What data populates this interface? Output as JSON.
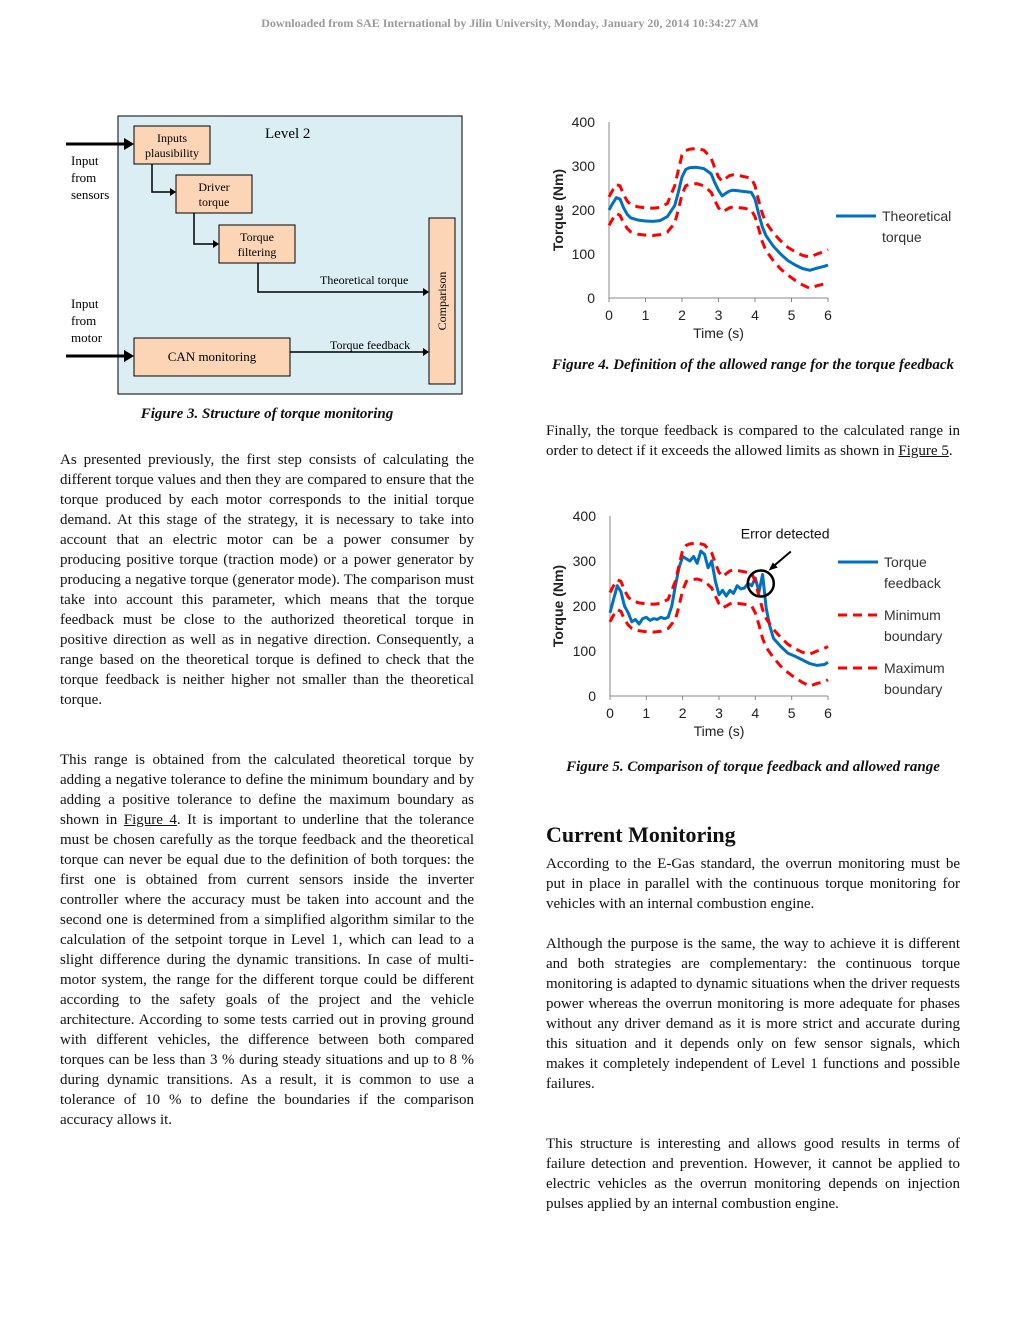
{
  "header": "Downloaded from SAE International by Jilin University, Monday, January 20, 2014 10:34:27 AM",
  "figure3": {
    "title": "Level 2",
    "input_sensors": [
      "Input",
      "from",
      "sensors"
    ],
    "input_motor": [
      "Input",
      "from",
      "motor"
    ],
    "block_inputs": [
      "Inputs",
      "plausibility"
    ],
    "block_driver": [
      "Driver",
      "torque"
    ],
    "block_filter": [
      "Torque",
      "filtering"
    ],
    "block_can": "CAN monitoring",
    "block_comparison": "Comparison",
    "label_theoretical": "Theoretical torque",
    "label_feedback": "Torque feedback",
    "colors": {
      "background": "#dbeef3",
      "block": "#fbd5b5"
    },
    "caption": "Figure 3. Structure of torque monitoring"
  },
  "left_paragraphs": [
    "As presented previously, the first step consists of calculating the different torque values and then they are compared to ensure that the torque produced by each motor corresponds to the initial torque demand. At this stage of the strategy, it is necessary to take into account that an electric motor can be a power consumer by producing positive torque (traction mode) or a power generator by producing a negative torque (generator mode). The comparison must take into account this parameter, which means that the torque feedback must be close to the authorized theoretical torque in positive direction as well as in negative direction. Consequently, a range based on the theoretical torque is defined to check that the torque feedback is neither higher not smaller than the theoretical torque."
  ],
  "para2": {
    "before": "This range is obtained from the calculated theoretical torque by adding a negative tolerance to define the minimum boundary and by adding a positive tolerance to define the maximum boundary as shown in ",
    "link": "Figure 4",
    "after": ". It is important to underline that the tolerance must be chosen carefully as the torque feedback and the theoretical torque can never be equal due to the definition of both torques: the first one is obtained from current sensors inside the inverter controller where the accuracy must be taken into account and the second one is determined from a simplified algorithm similar to the calculation of the setpoint torque in Level 1, which can lead to a slight difference during the dynamic transitions. In case of multi-motor system, the range for the different torque could be different according to the safety goals of the project and the vehicle architecture. According to some tests carried out in proving ground with different vehicles, the difference between both compared torques can be less than 3 % during steady situations and up to 8 % during dynamic transitions. As a result, it is common to use a tolerance of 10 % to define the boundaries if the comparison accuracy allows it."
  },
  "figure4_caption": "Figure 4. Definition of the allowed range for the torque feedback",
  "para_right1": {
    "before": "Finally, the torque feedback is compared to the calculated range in order to detect if it exceeds the allowed limits as shown in ",
    "link": "Figure 5",
    "after": "."
  },
  "figure5_annotation": "Error detected",
  "figure5_caption": "Figure 5. Comparison of torque feedback and allowed range",
  "section_heading": "Current Monitoring",
  "right_paragraphs": [
    "According to the E-Gas standard, the overrun monitoring must be put in place in parallel with the continuous torque monitoring for vehicles with an internal combustion engine.",
    "Although the purpose is the same, the way to achieve it is different and both strategies are complementary: the continuous torque monitoring is adapted to dynamic situations when the driver requests power whereas the overrun monitoring is more adequate for phases without any driver demand as it is more strict and accurate during this situation and it depends only on few sensor signals, which makes it completely independent of Level 1 functions and possible failures.",
    "This structure is interesting and allows good results in terms of failure detection and prevention. However, it cannot be applied to electric vehicles as the overrun monitoring depends on injection pulses applied by an internal combustion engine."
  ],
  "chart_data": [
    {
      "type": "line",
      "xlabel": "Time (s)",
      "ylabel": "Torque (Nm)",
      "xlim": [
        0,
        6
      ],
      "ylim": [
        0,
        400
      ],
      "xticks": [
        "0",
        "1",
        "2",
        "3",
        "4",
        "5",
        "6"
      ],
      "yticks": [
        "0",
        "100",
        "200",
        "300",
        "400"
      ],
      "legend_position": "right",
      "series": [
        {
          "name": "Theoretical torque",
          "color": "#0070c0",
          "style": "solid",
          "x": [
            0,
            0.1,
            0.2,
            0.3,
            0.4,
            0.5,
            0.6,
            0.8,
            1.0,
            1.2,
            1.4,
            1.6,
            1.8,
            1.9,
            2.0,
            2.1,
            2.2,
            2.4,
            2.6,
            2.8,
            2.9,
            3.0,
            3.1,
            3.2,
            3.3,
            3.4,
            3.5,
            3.7,
            3.9,
            4.0,
            4.1,
            4.2,
            4.3,
            4.5,
            4.7,
            4.9,
            5.1,
            5.3,
            5.5,
            5.7,
            5.9,
            6.0
          ],
          "y": [
            200,
            215,
            228,
            225,
            205,
            190,
            182,
            177,
            175,
            174,
            176,
            185,
            210,
            240,
            275,
            292,
            296,
            297,
            294,
            282,
            262,
            245,
            232,
            238,
            243,
            245,
            244,
            242,
            240,
            225,
            192,
            162,
            142,
            118,
            100,
            85,
            75,
            67,
            63,
            68,
            72,
            75
          ]
        },
        {
          "name": "",
          "color": "#ff0000",
          "style": "dashed",
          "x": [
            0,
            0.1,
            0.2,
            0.3,
            0.4,
            0.5,
            0.6,
            0.8,
            1.0,
            1.2,
            1.4,
            1.6,
            1.8,
            1.9,
            2.0,
            2.1,
            2.2,
            2.4,
            2.6,
            2.8,
            2.9,
            3.0,
            3.1,
            3.2,
            3.3,
            3.4,
            3.5,
            3.7,
            3.9,
            4.0,
            4.1,
            4.2,
            4.3,
            4.5,
            4.7,
            4.9,
            5.1,
            5.3,
            5.5,
            5.7,
            5.9,
            6.0
          ],
          "y": [
            230,
            245,
            258,
            255,
            235,
            220,
            212,
            207,
            205,
            204,
            206,
            215,
            255,
            290,
            325,
            335,
            338,
            340,
            336,
            318,
            295,
            275,
            265,
            272,
            278,
            280,
            279,
            276,
            272,
            255,
            222,
            192,
            172,
            148,
            130,
            115,
            105,
            97,
            93,
            100,
            106,
            110
          ]
        },
        {
          "name": "",
          "color": "#ff0000",
          "style": "dashed",
          "x": [
            0,
            0.1,
            0.2,
            0.3,
            0.4,
            0.5,
            0.6,
            0.8,
            1.0,
            1.2,
            1.4,
            1.6,
            1.8,
            1.9,
            2.0,
            2.1,
            2.2,
            2.4,
            2.6,
            2.8,
            2.9,
            3.0,
            3.1,
            3.2,
            3.3,
            3.4,
            3.5,
            3.7,
            3.9,
            4.0,
            4.1,
            4.2,
            4.3,
            4.5,
            4.7,
            4.9,
            5.1,
            5.3,
            5.5,
            5.7,
            5.9,
            6.0
          ],
          "y": [
            165,
            180,
            192,
            188,
            170,
            158,
            150,
            145,
            143,
            142,
            144,
            150,
            170,
            200,
            235,
            255,
            258,
            260,
            255,
            240,
            222,
            205,
            196,
            200,
            205,
            207,
            206,
            204,
            200,
            185,
            158,
            128,
            108,
            85,
            66,
            52,
            40,
            30,
            22,
            28,
            32,
            36
          ]
        }
      ]
    },
    {
      "type": "line",
      "xlabel": "Time (s)",
      "ylabel": "Torque (Nm)",
      "xlim": [
        0,
        6
      ],
      "ylim": [
        0,
        400
      ],
      "xticks": [
        "0",
        "1",
        "2",
        "3",
        "4",
        "5",
        "6"
      ],
      "yticks": [
        "0",
        "100",
        "200",
        "300",
        "400"
      ],
      "legend_position": "right",
      "annotation": {
        "text": "Error detected",
        "x": 4.15,
        "y": 250
      },
      "series": [
        {
          "name": "Torque feedback",
          "color": "#0070c0",
          "style": "solid",
          "x": [
            0,
            0.1,
            0.2,
            0.3,
            0.4,
            0.5,
            0.6,
            0.7,
            0.8,
            0.9,
            1.0,
            1.1,
            1.2,
            1.3,
            1.4,
            1.5,
            1.6,
            1.7,
            1.8,
            1.9,
            2.0,
            2.1,
            2.2,
            2.3,
            2.4,
            2.5,
            2.6,
            2.7,
            2.8,
            2.9,
            3.0,
            3.1,
            3.2,
            3.3,
            3.4,
            3.5,
            3.6,
            3.7,
            3.8,
            3.9,
            4.0,
            4.1,
            4.2,
            4.3,
            4.4,
            4.5,
            4.7,
            4.9,
            5.1,
            5.3,
            5.5,
            5.7,
            5.9,
            6.0
          ],
          "y": [
            185,
            215,
            245,
            232,
            200,
            185,
            165,
            170,
            160,
            172,
            175,
            168,
            172,
            170,
            175,
            172,
            175,
            200,
            245,
            285,
            310,
            305,
            300,
            310,
            295,
            322,
            315,
            285,
            300,
            255,
            225,
            235,
            222,
            235,
            228,
            245,
            238,
            240,
            250,
            245,
            262,
            232,
            270,
            195,
            155,
            128,
            110,
            95,
            88,
            80,
            72,
            68,
            70,
            75
          ]
        },
        {
          "name": "Minimum boundary",
          "color": "#ff0000",
          "style": "dashed",
          "x": [
            0,
            0.1,
            0.2,
            0.3,
            0.4,
            0.5,
            0.6,
            0.8,
            1.0,
            1.2,
            1.4,
            1.6,
            1.8,
            1.9,
            2.0,
            2.1,
            2.2,
            2.4,
            2.6,
            2.8,
            2.9,
            3.0,
            3.1,
            3.2,
            3.3,
            3.4,
            3.5,
            3.7,
            3.9,
            4.0,
            4.1,
            4.2,
            4.3,
            4.5,
            4.7,
            4.9,
            5.1,
            5.3,
            5.5,
            5.7,
            5.9,
            6.0
          ],
          "y": [
            165,
            180,
            192,
            188,
            170,
            158,
            150,
            145,
            143,
            142,
            144,
            150,
            170,
            200,
            235,
            255,
            258,
            260,
            255,
            240,
            222,
            205,
            196,
            200,
            205,
            207,
            206,
            204,
            200,
            185,
            158,
            128,
            108,
            85,
            66,
            52,
            40,
            30,
            22,
            28,
            32,
            36
          ]
        },
        {
          "name": "Maximum boundary",
          "color": "#ff0000",
          "style": "dashed",
          "x": [
            0,
            0.1,
            0.2,
            0.3,
            0.4,
            0.5,
            0.6,
            0.8,
            1.0,
            1.2,
            1.4,
            1.6,
            1.8,
            1.9,
            2.0,
            2.1,
            2.2,
            2.4,
            2.6,
            2.8,
            2.9,
            3.0,
            3.1,
            3.2,
            3.3,
            3.4,
            3.5,
            3.7,
            3.9,
            4.0,
            4.1,
            4.2,
            4.3,
            4.5,
            4.7,
            4.9,
            5.1,
            5.3,
            5.5,
            5.7,
            5.9,
            6.0
          ],
          "y": [
            230,
            245,
            258,
            255,
            235,
            220,
            212,
            207,
            205,
            204,
            206,
            215,
            255,
            290,
            325,
            335,
            338,
            340,
            336,
            318,
            295,
            275,
            265,
            272,
            278,
            280,
            279,
            276,
            272,
            255,
            222,
            192,
            172,
            148,
            130,
            115,
            105,
            97,
            93,
            100,
            106,
            110
          ]
        }
      ]
    }
  ]
}
